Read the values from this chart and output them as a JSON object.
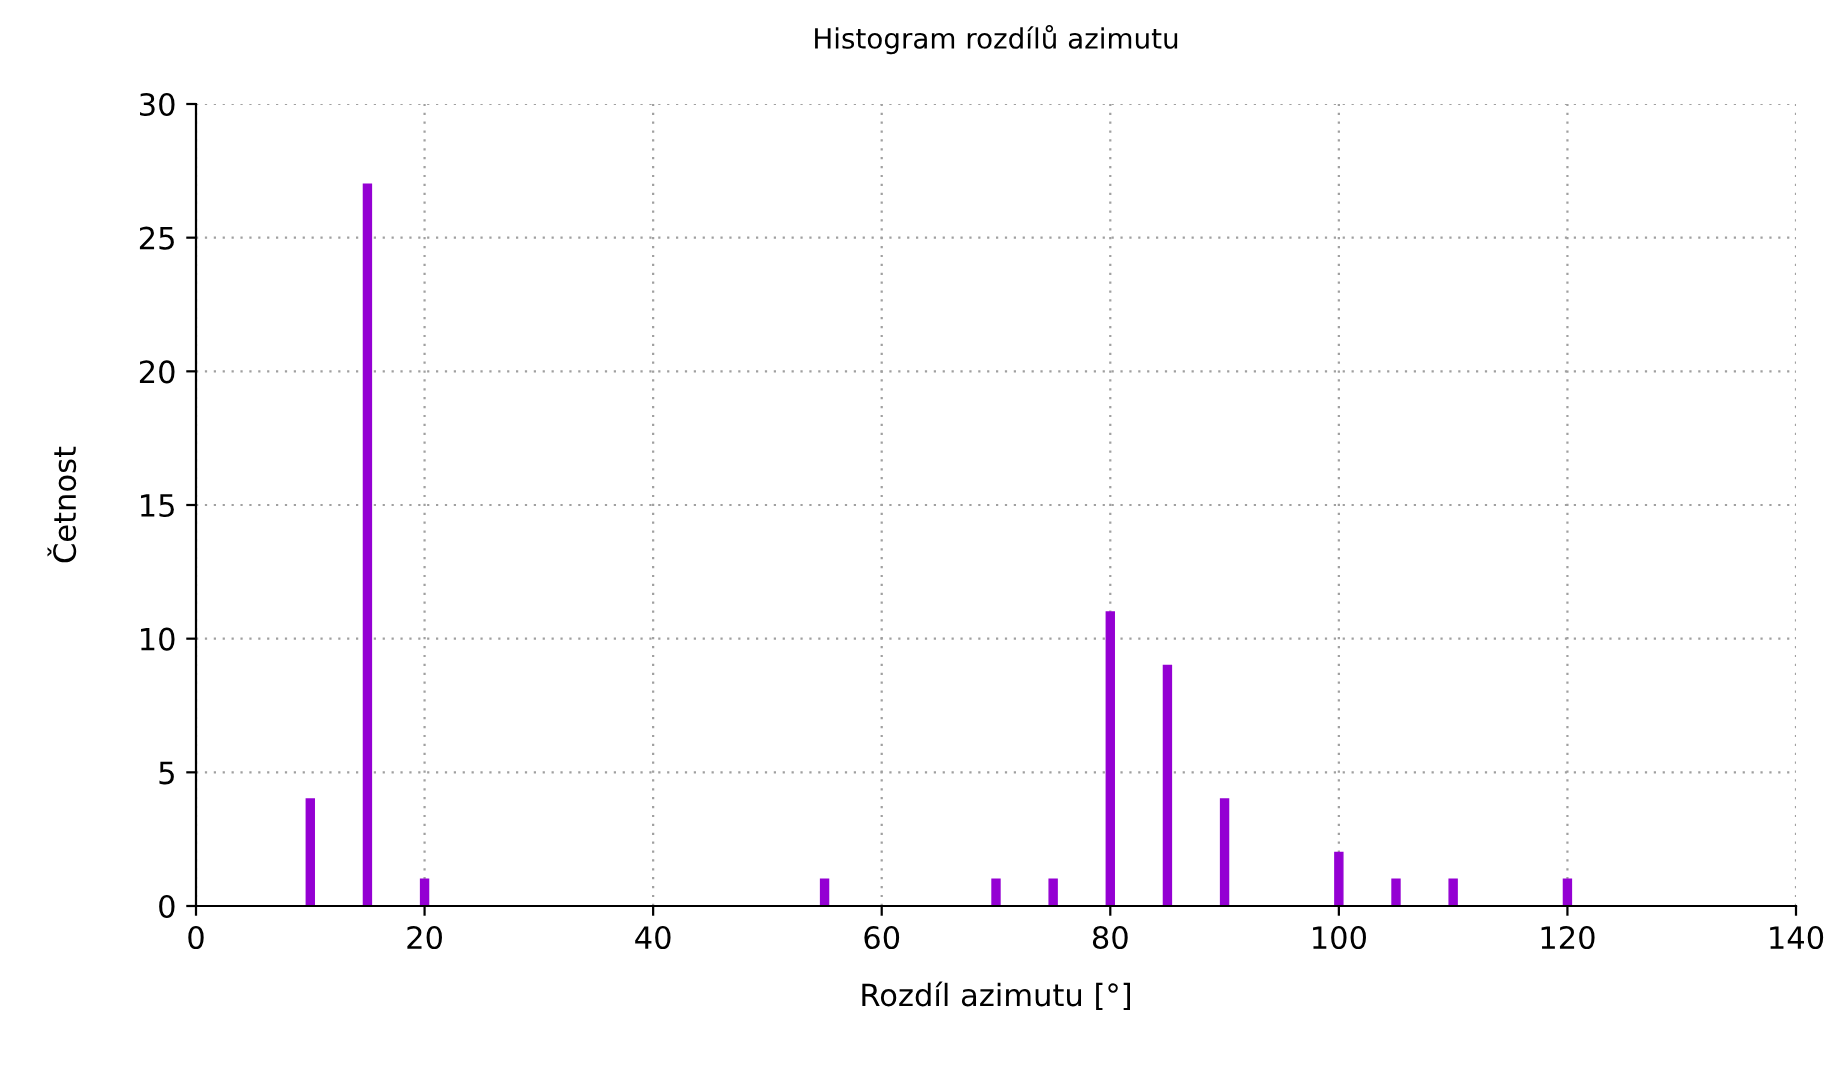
{
  "chart_data": {
    "type": "bar",
    "title": "Histogram rozdílů azimutu",
    "xlabel": "Rozdíl azimutu [°]",
    "ylabel": "Četnost",
    "x": [
      10,
      15,
      20,
      55,
      70,
      75,
      80,
      85,
      90,
      100,
      105,
      110,
      120
    ],
    "values": [
      4,
      27,
      1,
      1,
      1,
      1,
      11,
      9,
      4,
      2,
      1,
      1,
      1
    ],
    "color": "#9400d3",
    "xlim": [
      0,
      140
    ],
    "xticks": [
      0,
      20,
      40,
      60,
      80,
      100,
      120,
      140
    ],
    "ylim": [
      0,
      30
    ],
    "yticks": [
      0,
      5,
      10,
      15,
      20,
      25,
      30
    ],
    "grid": true,
    "legend": false
  }
}
